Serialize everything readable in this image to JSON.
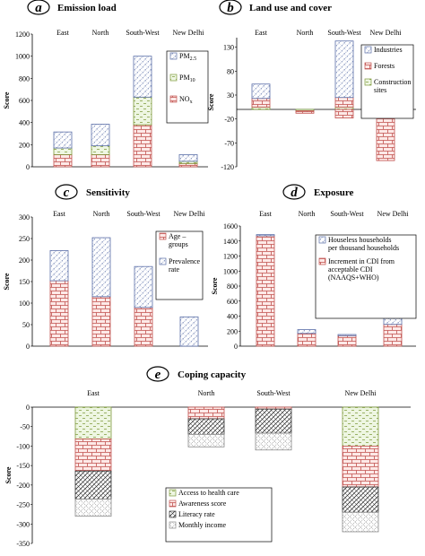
{
  "patterns": {
    "brick": {
      "stroke": "#c0504d",
      "fill": "#fde9e7"
    },
    "dots": {
      "stroke": "#5b6fa8",
      "fill": "#ffffff"
    },
    "dash": {
      "stroke": "#7e9a3c",
      "fill": "#eef6e2"
    },
    "diagonal": {
      "stroke": "#333333",
      "fill": "#ffffff"
    },
    "crossdot": {
      "stroke": "#8a8a8a",
      "fill": "#ffffff"
    }
  },
  "chart_data": [
    {
      "id": "a",
      "letter": "a",
      "title": "Emission load",
      "type": "bar",
      "stacked": true,
      "categories": [
        "East",
        "North",
        "South-West",
        "New Delhi"
      ],
      "ylabel": "Score",
      "ylim": [
        0,
        1200
      ],
      "yticks": [
        "0",
        "200",
        "400",
        "600",
        "800",
        "1000",
        "1200"
      ],
      "series": [
        {
          "name": "NOx",
          "label_main": "NO",
          "label_sub": "x",
          "pattern": "brick",
          "values": [
            110,
            110,
            380,
            30
          ]
        },
        {
          "name": "PM10",
          "label_main": "PM",
          "label_sub": "10",
          "pattern": "dash",
          "values": [
            60,
            80,
            250,
            20
          ]
        },
        {
          "name": "PM2.5",
          "label_main": "PM",
          "label_sub": "2.5",
          "pattern": "dots",
          "values": [
            145,
            195,
            370,
            60
          ]
        }
      ],
      "legend_order": [
        2,
        1,
        0
      ],
      "legend_position": "right"
    },
    {
      "id": "b",
      "letter": "b",
      "title": "Land use and cover",
      "type": "bar",
      "stacked": true,
      "categories": [
        "East",
        "North",
        "South-West",
        "New Delhi"
      ],
      "ylabel": "Score",
      "ylim": [
        -120,
        150
      ],
      "yticks": [
        "-120",
        "-70",
        "-20",
        "30",
        "80",
        "130"
      ],
      "series": [
        {
          "name": "Construction sites",
          "pattern": "dash",
          "values": [
            5,
            -3,
            5,
            -2
          ]
        },
        {
          "name": "Forests",
          "pattern": "brick",
          "values": [
            18,
            -5,
            20,
            -105
          ]
        },
        {
          "name": "Industries",
          "pattern": "dots",
          "values": [
            30,
            0,
            118,
            0
          ]
        }
      ],
      "extra_negative": [
        0,
        0,
        -18,
        0
      ],
      "legend_order": [
        2,
        1,
        0
      ],
      "legend_position": "right"
    },
    {
      "id": "c",
      "letter": "c",
      "title": "Sensitivity",
      "type": "bar",
      "stacked": true,
      "categories": [
        "East",
        "North",
        "South-West",
        "New Delhi"
      ],
      "ylabel": "Score",
      "ylim": [
        0,
        300
      ],
      "yticks": [
        "0",
        "50",
        "100",
        "150",
        "200",
        "250",
        "300"
      ],
      "series": [
        {
          "name": "Age – groups",
          "pattern": "brick",
          "values": [
            152,
            115,
            90,
            0
          ]
        },
        {
          "name": "Prevalence rate",
          "pattern": "dots",
          "values": [
            70,
            137,
            95,
            68
          ]
        }
      ],
      "legend_order": [
        0,
        1
      ],
      "legend_position": "right"
    },
    {
      "id": "d",
      "letter": "d",
      "title": "Exposure",
      "type": "bar",
      "stacked": true,
      "categories": [
        "East",
        "North",
        "South-West",
        "New Delhi"
      ],
      "ylabel": "Score",
      "ylim": [
        0,
        1600
      ],
      "yticks": [
        "0",
        "200",
        "400",
        "600",
        "800",
        "1000",
        "1200",
        "1400",
        "1600"
      ],
      "series": [
        {
          "name": "Increment in CDI from acceptable CDI (NAAQS+WHO)",
          "pattern": "brick",
          "values": [
            1470,
            170,
            140,
            290
          ]
        },
        {
          "name": "Houseless households per thousand households",
          "pattern": "dots",
          "values": [
            15,
            50,
            15,
            80
          ]
        }
      ],
      "legend_order": [
        1,
        0
      ],
      "legend_position": "right"
    },
    {
      "id": "e",
      "letter": "e",
      "title": "Coping capacity",
      "type": "bar",
      "stacked": true,
      "categories": [
        "East",
        "North",
        "South-West",
        "New Delhi"
      ],
      "ylabel": "Score",
      "ylim": [
        -350,
        0
      ],
      "yticks": [
        "0",
        "-50",
        "-100",
        "-150",
        "-200",
        "-250",
        "-300",
        "-350"
      ],
      "series": [
        {
          "name": "Access to health care",
          "pattern": "dash",
          "values": [
            -82,
            0,
            0,
            -100
          ]
        },
        {
          "name": "Awareness score",
          "pattern": "brick",
          "values": [
            -82,
            -30,
            -5,
            -105
          ]
        },
        {
          "name": "Literacy rate",
          "pattern": "diagonal",
          "values": [
            -72,
            -40,
            -62,
            -65
          ]
        },
        {
          "name": "Monthly income",
          "pattern": "crossdot",
          "values": [
            -44,
            -32,
            -43,
            -50
          ]
        }
      ],
      "legend_order": [
        0,
        1,
        2,
        3
      ],
      "legend_position": "bottom-left"
    }
  ]
}
